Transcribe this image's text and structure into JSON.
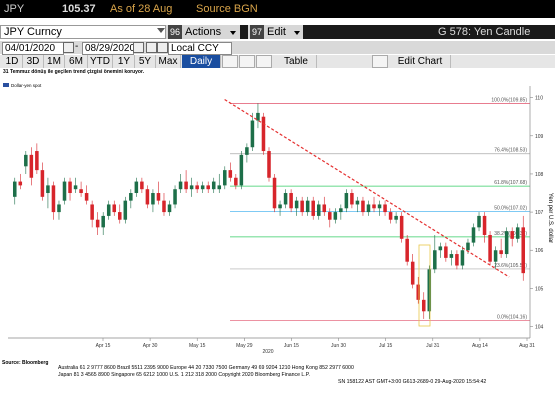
{
  "header": {
    "symbol": "JPY",
    "price": "105.37",
    "as_of": "As of 28 Aug",
    "source": "Source BGN"
  },
  "toolbar": {
    "ticker": "JPY Curncy",
    "actions_num": "96",
    "actions_label": "Actions",
    "edit_num": "97",
    "edit_label": "Edit",
    "function_title": "G 578: Yen Candle"
  },
  "range": {
    "start": "04/01/2020",
    "end": "08/29/2020",
    "currency": "Local CCY"
  },
  "periods": [
    "1D",
    "3D",
    "1M",
    "6M",
    "YTD",
    "1Y",
    "5Y",
    "Max"
  ],
  "frequency": "Daily",
  "table_label": "Table",
  "edit_chart_label": "Edit Chart",
  "chart_data": {
    "type": "candlestick",
    "title": "31 Temmuz dönüş ile geçilen trend çizgisi önemini koruyor.",
    "legend": "Dollar-yen spot",
    "ylabel": "Yen per U.S. dollar",
    "ylim": [
      103.7,
      110.2
    ],
    "x_tick_labels": [
      "Apr 15",
      "Apr 30",
      "May 15",
      "May 29",
      "Jun 15",
      "Jun 30",
      "Jul 15",
      "Jul 31",
      "Aug 14",
      "Aug 31"
    ],
    "x_year_label": "2020",
    "y_ticks": [
      104,
      105,
      106,
      107,
      108,
      109,
      110
    ],
    "fib_levels": [
      {
        "label": "100.0%(109.85)",
        "value": 109.85,
        "color": "#e0506a"
      },
      {
        "label": "76.4%(108.53)",
        "value": 108.53,
        "color": "#aaaaaa"
      },
      {
        "label": "61.8%(107.68)",
        "value": 107.68,
        "color": "#33cc66"
      },
      {
        "label": "50.0%(107.02)",
        "value": 107.02,
        "color": "#33aaee"
      },
      {
        "label": "38.2%(106.35)",
        "value": 106.35,
        "color": "#33cc66"
      },
      {
        "label": "23.6%(105.51)",
        "value": 105.51,
        "color": "#aaaaaa"
      },
      {
        "label": "0.0%(104.16)",
        "value": 104.16,
        "color": "#e0506a"
      }
    ],
    "trendline": {
      "x": [
        0.415,
        0.96
      ],
      "y": [
        109.95,
        105.3
      ]
    },
    "candles": [
      [
        107.4,
        107.9,
        107.2,
        107.8
      ],
      [
        107.8,
        108.0,
        107.6,
        107.7
      ],
      [
        108.2,
        108.6,
        108.0,
        108.5
      ],
      [
        108.5,
        108.7,
        107.7,
        107.9
      ],
      [
        108.6,
        108.8,
        108.0,
        108.1
      ],
      [
        108.1,
        108.3,
        107.3,
        107.4
      ],
      [
        107.5,
        107.9,
        107.1,
        107.7
      ],
      [
        107.7,
        107.8,
        106.8,
        107.0
      ],
      [
        107.0,
        107.3,
        106.8,
        107.2
      ],
      [
        107.3,
        107.9,
        107.2,
        107.8
      ],
      [
        107.8,
        107.9,
        107.3,
        107.5
      ],
      [
        107.6,
        107.9,
        107.5,
        107.7
      ],
      [
        107.6,
        107.8,
        107.4,
        107.5
      ],
      [
        107.5,
        107.7,
        107.2,
        107.3
      ],
      [
        107.2,
        107.3,
        106.6,
        106.8
      ],
      [
        106.8,
        107.0,
        106.4,
        106.6
      ],
      [
        106.6,
        107.0,
        106.4,
        106.9
      ],
      [
        106.9,
        107.3,
        106.8,
        107.2
      ],
      [
        107.2,
        107.3,
        106.9,
        107.0
      ],
      [
        107.0,
        107.2,
        106.7,
        106.8
      ],
      [
        106.8,
        107.4,
        106.7,
        107.3
      ],
      [
        107.3,
        107.6,
        107.1,
        107.5
      ],
      [
        107.5,
        107.9,
        107.4,
        107.8
      ],
      [
        107.8,
        107.9,
        107.5,
        107.6
      ],
      [
        107.6,
        107.7,
        107.1,
        107.2
      ],
      [
        107.2,
        107.6,
        107.0,
        107.5
      ],
      [
        107.5,
        107.8,
        107.2,
        107.3
      ],
      [
        107.3,
        107.5,
        106.9,
        107.0
      ],
      [
        107.0,
        107.3,
        106.9,
        107.2
      ],
      [
        107.2,
        107.7,
        107.1,
        107.6
      ],
      [
        107.6,
        108.0,
        107.5,
        107.8
      ],
      [
        107.8,
        108.1,
        107.5,
        107.6
      ],
      [
        107.6,
        107.9,
        107.4,
        107.7
      ],
      [
        107.7,
        107.8,
        107.5,
        107.6
      ],
      [
        107.6,
        107.8,
        107.5,
        107.7
      ],
      [
        107.7,
        107.8,
        107.5,
        107.6
      ],
      [
        107.6,
        107.9,
        107.5,
        107.8
      ],
      [
        107.6,
        108.0,
        107.5,
        107.7
      ],
      [
        107.7,
        108.2,
        107.6,
        108.1
      ],
      [
        108.1,
        108.3,
        107.8,
        107.9
      ],
      [
        107.9,
        108.0,
        107.6,
        107.7
      ],
      [
        107.7,
        108.6,
        107.6,
        108.5
      ],
      [
        108.5,
        108.8,
        108.3,
        108.7
      ],
      [
        108.7,
        109.6,
        108.6,
        109.4
      ],
      [
        109.4,
        109.85,
        109.2,
        109.6
      ],
      [
        109.5,
        109.6,
        108.5,
        108.6
      ],
      [
        108.6,
        108.7,
        107.8,
        107.9
      ],
      [
        107.9,
        108.0,
        107.0,
        107.1
      ],
      [
        107.1,
        107.3,
        106.9,
        107.2
      ],
      [
        107.2,
        107.6,
        107.1,
        107.5
      ],
      [
        107.5,
        107.6,
        107.0,
        107.1
      ],
      [
        107.1,
        107.4,
        106.9,
        107.3
      ],
      [
        107.3,
        107.4,
        106.9,
        107.0
      ],
      [
        107.0,
        107.4,
        106.9,
        107.3
      ],
      [
        107.3,
        107.4,
        106.8,
        106.9
      ],
      [
        106.9,
        107.3,
        106.8,
        107.2
      ],
      [
        107.2,
        107.4,
        106.9,
        107.0
      ],
      [
        107.0,
        107.1,
        106.6,
        106.8
      ],
      [
        106.8,
        107.1,
        106.7,
        107.0
      ],
      [
        107.0,
        107.2,
        106.8,
        107.1
      ],
      [
        107.1,
        107.6,
        107.0,
        107.5
      ],
      [
        107.5,
        107.6,
        107.1,
        107.2
      ],
      [
        107.2,
        107.4,
        107.0,
        107.3
      ],
      [
        107.3,
        107.4,
        106.9,
        107.0
      ],
      [
        107.0,
        107.3,
        106.9,
        107.2
      ],
      [
        107.2,
        107.4,
        107.0,
        107.1
      ],
      [
        107.1,
        107.3,
        106.9,
        107.2
      ],
      [
        107.2,
        107.3,
        106.9,
        107.0
      ],
      [
        107.0,
        107.1,
        106.7,
        106.8
      ],
      [
        106.8,
        107.0,
        106.7,
        106.9
      ],
      [
        106.9,
        107.0,
        106.2,
        106.3
      ],
      [
        106.3,
        106.4,
        105.6,
        105.7
      ],
      [
        105.7,
        105.9,
        105.0,
        105.1
      ],
      [
        105.1,
        105.3,
        104.6,
        104.7
      ],
      [
        104.7,
        104.9,
        104.2,
        104.4
      ],
      [
        104.4,
        105.6,
        104.2,
        105.5
      ],
      [
        105.5,
        106.4,
        105.4,
        106.0
      ],
      [
        106.0,
        106.2,
        105.8,
        106.1
      ],
      [
        106.1,
        106.2,
        105.7,
        105.8
      ],
      [
        105.8,
        106.0,
        105.6,
        105.9
      ],
      [
        105.9,
        106.0,
        105.5,
        105.6
      ],
      [
        105.6,
        106.1,
        105.5,
        106.0
      ],
      [
        106.0,
        106.3,
        105.9,
        106.2
      ],
      [
        106.2,
        106.7,
        106.1,
        106.6
      ],
      [
        106.6,
        107.0,
        106.5,
        106.9
      ],
      [
        106.9,
        107.0,
        106.2,
        106.4
      ],
      [
        106.4,
        106.5,
        105.6,
        105.7
      ],
      [
        105.7,
        106.1,
        105.5,
        106.0
      ],
      [
        106.0,
        106.3,
        105.8,
        105.9
      ],
      [
        105.9,
        106.6,
        105.8,
        106.5
      ],
      [
        106.5,
        106.6,
        106.1,
        106.3
      ],
      [
        106.3,
        106.7,
        106.2,
        106.6
      ],
      [
        106.6,
        106.9,
        105.2,
        105.4
      ]
    ]
  },
  "footer": {
    "source": "Source: Bloomberg",
    "line1": "Australia 61 2 9777 8600 Brazil 5511 2395 9000 Europe 44 20 7330 7500 Germany 49 69 9204 1210 Hong Kong 852 2977 6000",
    "line2": "Japan 81 3 4565 8900          Singapore 65 6212 1000        U.S. 1 212 318 2000        Copyright 2020 Bloomberg Finance L.P.",
    "line3": "SN 158122 AST  GMT+3:00 G613-2689-0 29-Aug-2020 15:54:42"
  },
  "colors": {
    "up": "#1d6f49",
    "down": "#d7252b",
    "trend": "#e53030"
  }
}
